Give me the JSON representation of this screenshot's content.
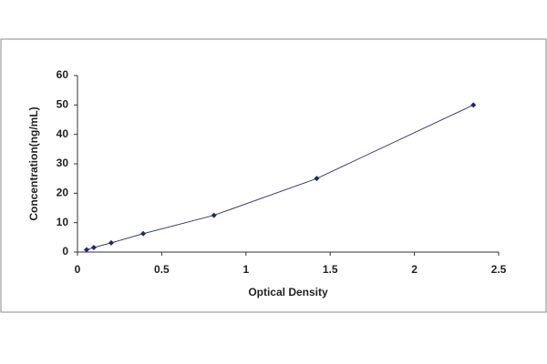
{
  "chart_data": {
    "type": "scatter",
    "x_label": "Optical Density",
    "y_label": "Concentration(ng/mL)",
    "x": [
      0.054,
      0.097,
      0.2,
      0.39,
      0.81,
      1.42,
      2.35
    ],
    "series": [
      {
        "color": "#1f2a6b",
        "values": [
          0.78,
          1.56,
          3.12,
          6.25,
          12.5,
          25,
          50
        ]
      }
    ],
    "xlim": [
      0,
      2.5
    ],
    "xticks": [
      0,
      0.5,
      1,
      1.5,
      2,
      2.5
    ],
    "ylim": [
      0,
      60
    ],
    "yticks": [
      0,
      10,
      20,
      30,
      40,
      50,
      60
    ],
    "grid": false
  }
}
